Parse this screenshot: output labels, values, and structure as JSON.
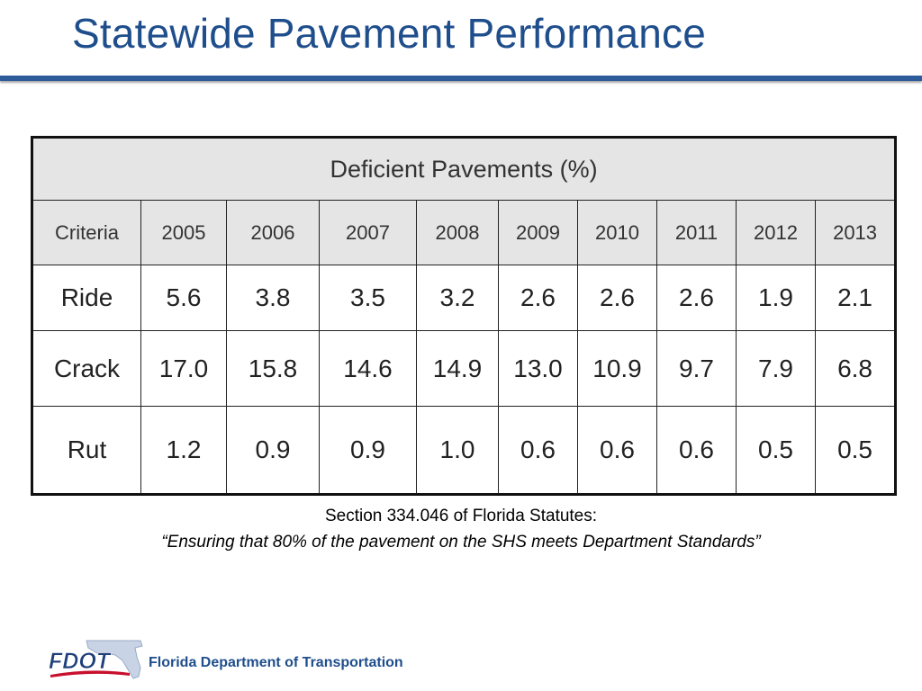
{
  "slide": {
    "title": "Statewide Pavement Performance"
  },
  "table": {
    "caption": "Deficient Pavements (%)",
    "columns": [
      "Criteria",
      "2005",
      "2006",
      "2007",
      "2008",
      "2009",
      "2010",
      "2011",
      "2012",
      "2013"
    ],
    "rows": [
      [
        "Ride",
        "5.6",
        "3.8",
        "3.5",
        "3.2",
        "2.6",
        "2.6",
        "2.6",
        "1.9",
        "2.1"
      ],
      [
        "Crack",
        "17.0",
        "15.8",
        "14.6",
        "14.9",
        "13.0",
        "10.9",
        "9.7",
        "7.9",
        "6.8"
      ],
      [
        "Rut",
        "1.2",
        "0.9",
        "0.9",
        "1.0",
        "0.6",
        "0.6",
        "0.6",
        "0.5",
        "0.5"
      ]
    ]
  },
  "note": {
    "line1": "Section 334.046 of Florida Statutes:",
    "line2": "“Ensuring that 80% of the pavement on the SHS meets Department Standards”"
  },
  "footer": {
    "logo_text": "FDOT",
    "agency": "Florida Department of Transportation"
  },
  "colors": {
    "title": "#1f4e8c",
    "rule": "#2e5c9a",
    "header_bg": "#e6e5e6",
    "logo_red": "#c8102e",
    "logo_blue": "#1f3f7a"
  }
}
